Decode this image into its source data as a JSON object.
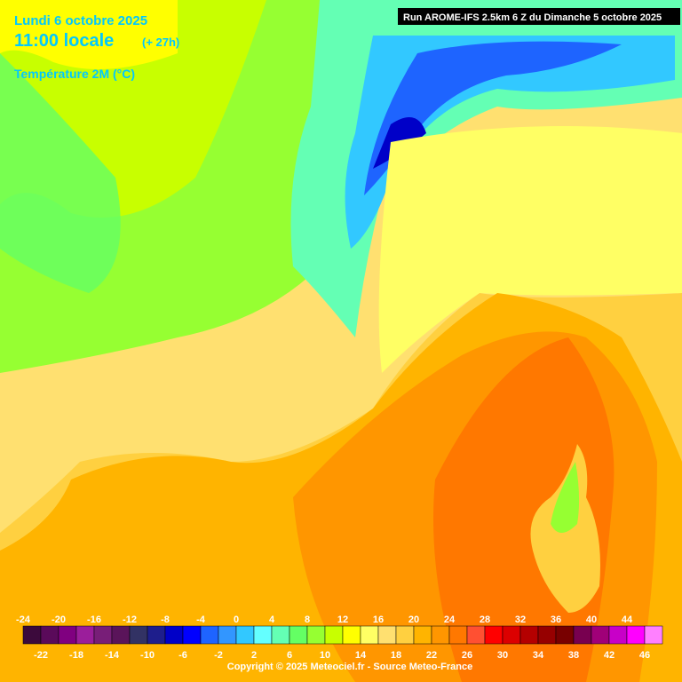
{
  "header": {
    "date": "Lundi 6 octobre 2025",
    "time": "11:00 locale",
    "lead": "(+ 27h)",
    "parameter": "Température 2M (°C)",
    "run": "Run AROME-IFS 2.5km 6 Z du Dimanche 5 octobre 2025"
  },
  "legend": {
    "ticks": [
      -24,
      -22,
      -20,
      -18,
      -16,
      -14,
      -12,
      -10,
      -8,
      -6,
      -4,
      -2,
      0,
      2,
      4,
      6,
      8,
      10,
      12,
      14,
      16,
      18,
      20,
      22,
      24,
      26,
      28,
      30,
      32,
      34,
      36,
      38,
      40,
      42,
      44,
      46
    ],
    "colors": [
      "#3c0a3c",
      "#5a0a5a",
      "#800080",
      "#9b1e9b",
      "#781e78",
      "#5a145a",
      "#323264",
      "#1e1e8c",
      "#0000c8",
      "#0000ff",
      "#1e64ff",
      "#3296ff",
      "#32c8ff",
      "#64ffff",
      "#64ffb4",
      "#64ff64",
      "#96ff32",
      "#c8ff00",
      "#ffff00",
      "#ffff64",
      "#ffe070",
      "#ffd040",
      "#ffb400",
      "#ff9600",
      "#ff7800",
      "#ff5032",
      "#ff0000",
      "#dc0000",
      "#b40000",
      "#960000",
      "#780000",
      "#780050",
      "#a00078",
      "#c800c8",
      "#ff00ff",
      "#ff80ff"
    ]
  },
  "footer": {
    "copyright": "Copyright © 2025 Meteociel.fr - Source Meteo-France"
  }
}
